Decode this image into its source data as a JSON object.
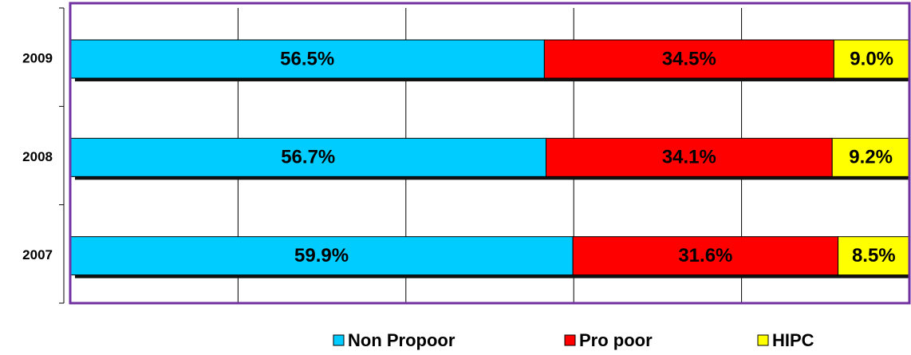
{
  "chart_data": {
    "type": "stacked-bar-horizontal",
    "categories": [
      "2009",
      "2008",
      "2007"
    ],
    "series": [
      {
        "name": "Non Propoor",
        "color": "#00ccff",
        "values": [
          56.5,
          56.7,
          59.9
        ],
        "value_labels": [
          "56.5%",
          "56.7%",
          "59.9%"
        ]
      },
      {
        "name": "Pro poor",
        "color": "#ff0000",
        "values": [
          34.5,
          34.1,
          31.6
        ],
        "value_labels": [
          "34.5%",
          "34.1%",
          "31.6%"
        ]
      },
      {
        "name": "HIPC",
        "color": "#ffff00",
        "values": [
          9.0,
          9.2,
          8.5
        ],
        "value_labels": [
          "9.0%",
          "9.2%",
          "8.5%"
        ]
      }
    ],
    "xlim": [
      0,
      100
    ],
    "xticks": [
      0,
      20,
      40,
      60,
      80,
      100
    ],
    "grid": true,
    "legend": "bottom"
  }
}
